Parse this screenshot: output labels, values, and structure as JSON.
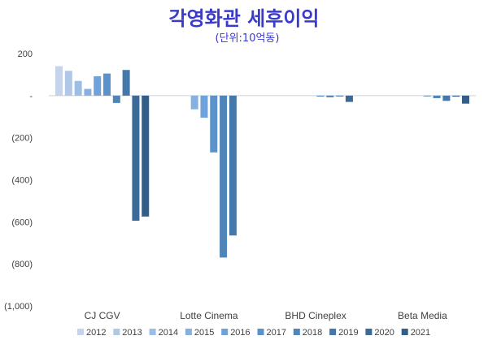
{
  "chart_data": {
    "type": "bar",
    "title": "각영화관 세후이익",
    "subtitle": "(단위:10억동)",
    "categories": [
      "CJ CGV",
      "Lotte Cinema",
      "BHD Cineplex",
      "Beta Media"
    ],
    "series": [
      {
        "name": "2012",
        "color": "#c5d4ea",
        "values": [
          140,
          null,
          null,
          null
        ]
      },
      {
        "name": "2013",
        "color": "#b1c7e6",
        "values": [
          118,
          null,
          null,
          null
        ]
      },
      {
        "name": "2014",
        "color": "#9dbde3",
        "values": [
          70,
          null,
          null,
          null
        ]
      },
      {
        "name": "2015",
        "color": "#86b0df",
        "values": [
          32,
          -65,
          null,
          null
        ]
      },
      {
        "name": "2016",
        "color": "#6fa2da",
        "values": [
          92,
          -105,
          null,
          null
        ]
      },
      {
        "name": "2017",
        "color": "#5b92ca",
        "values": [
          105,
          -270,
          -5,
          -3
        ]
      },
      {
        "name": "2018",
        "color": "#4f85b9",
        "values": [
          -35,
          -770,
          -8,
          -12
        ]
      },
      {
        "name": "2019",
        "color": "#4478aa",
        "values": [
          122,
          -665,
          -4,
          -25
        ]
      },
      {
        "name": "2020",
        "color": "#3c6a98",
        "values": [
          -595,
          null,
          -30,
          -5
        ]
      },
      {
        "name": "2021",
        "color": "#335e88",
        "values": [
          -575,
          null,
          null,
          -38
        ]
      }
    ],
    "yticks": [
      "200",
      "-",
      "(200)",
      "(400)",
      "(600)",
      "(800)",
      "(1,000)"
    ],
    "ytick_values": [
      200,
      0,
      -200,
      -400,
      -600,
      -800,
      -1000
    ],
    "ylim": [
      -1000,
      200
    ],
    "grid": false,
    "legend_position": "bottom"
  }
}
